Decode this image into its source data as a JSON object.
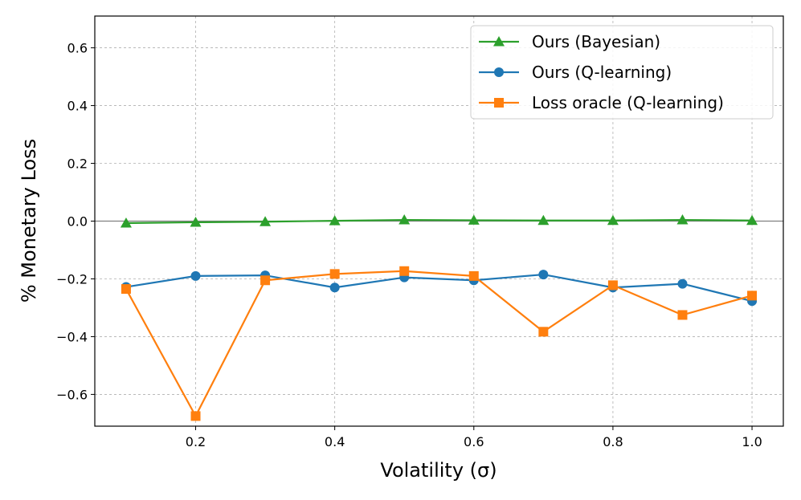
{
  "chart_data": {
    "type": "line",
    "xlabel": "Volatility (σ)",
    "ylabel": "% Monetary Loss",
    "xlim": [
      0.055,
      1.045
    ],
    "ylim": [
      -0.71,
      0.71
    ],
    "xticks": [
      0.2,
      0.4,
      0.6,
      0.8,
      1.0
    ],
    "xtick_labels": [
      "0.2",
      "0.4",
      "0.6",
      "0.8",
      "1.0"
    ],
    "yticks": [
      -0.6,
      -0.4,
      -0.2,
      0.0,
      0.2,
      0.4,
      0.6
    ],
    "ytick_labels": [
      "−0.6",
      "−0.4",
      "−0.2",
      "0.0",
      "0.2",
      "0.4",
      "0.6"
    ],
    "grid": true,
    "zero_line": true,
    "legend_position": "upper right",
    "x": [
      0.1,
      0.2,
      0.3,
      0.4,
      0.5,
      0.6,
      0.7,
      0.8,
      0.9,
      1.0
    ],
    "series": [
      {
        "name": "Ours (Bayesian)",
        "color": "#2ca02c",
        "marker": "triangle",
        "values": [
          -0.007,
          -0.004,
          -0.002,
          0.001,
          0.004,
          0.003,
          0.002,
          0.002,
          0.004,
          0.002
        ]
      },
      {
        "name": "Ours (Q-learning)",
        "color": "#1f77b4",
        "marker": "circle",
        "values": [
          -0.228,
          -0.19,
          -0.188,
          -0.23,
          -0.195,
          -0.205,
          -0.185,
          -0.23,
          -0.217,
          -0.277
        ]
      },
      {
        "name": "Loss oracle (Q-learning)",
        "color": "#ff7f0e",
        "marker": "square",
        "values": [
          -0.235,
          -0.675,
          -0.205,
          -0.183,
          -0.173,
          -0.19,
          -0.383,
          -0.222,
          -0.325,
          -0.258
        ]
      }
    ]
  }
}
